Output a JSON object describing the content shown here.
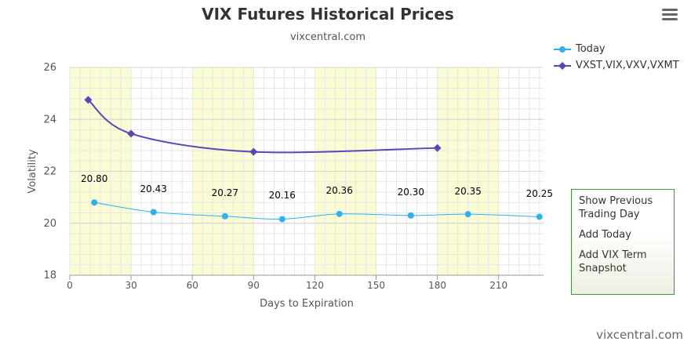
{
  "header": {
    "title": "VIX Futures Historical Prices",
    "subtitle": "vixcentral.com"
  },
  "menu_icon": "hamburger-menu-icon",
  "side_menu": {
    "items": [
      "Show Previous Trading Day",
      "Add Today",
      "Add VIX Term Snapshot"
    ]
  },
  "footer": {
    "watermark": "vixcentral.com"
  },
  "colors": {
    "today": "#2fb0f0",
    "term": "#5b45b8",
    "band": "#fbfbd4",
    "panel_border": "#3a9a3a"
  },
  "chart_data": {
    "type": "line",
    "title": "VIX Futures Historical Prices",
    "subtitle": "vixcentral.com",
    "xlabel": "Days to Expiration",
    "ylabel": "Volatility",
    "xlim": [
      0,
      232
    ],
    "ylim": [
      18,
      26
    ],
    "xticks": [
      0,
      30,
      60,
      90,
      120,
      150,
      180,
      210
    ],
    "yticks": [
      18,
      20,
      22,
      24,
      26
    ],
    "highlight_bands": [
      [
        0,
        30
      ],
      [
        60,
        90
      ],
      [
        120,
        150
      ],
      [
        180,
        210
      ]
    ],
    "grid": true,
    "legend_position": "top-right",
    "series": [
      {
        "name": "Today",
        "marker": "circle",
        "x": [
          12,
          41,
          76,
          104,
          132,
          167,
          195,
          230
        ],
        "y": [
          20.8,
          20.43,
          20.27,
          20.16,
          20.36,
          20.3,
          20.35,
          20.25
        ],
        "labels": [
          "20.80",
          "20.43",
          "20.27",
          "20.16",
          "20.36",
          "20.30",
          "20.35",
          "20.25"
        ]
      },
      {
        "name": "VXST,VIX,VXV,VXMT",
        "marker": "diamond",
        "x": [
          9,
          30,
          90,
          180
        ],
        "y": [
          24.75,
          23.45,
          22.75,
          22.9
        ]
      }
    ]
  }
}
